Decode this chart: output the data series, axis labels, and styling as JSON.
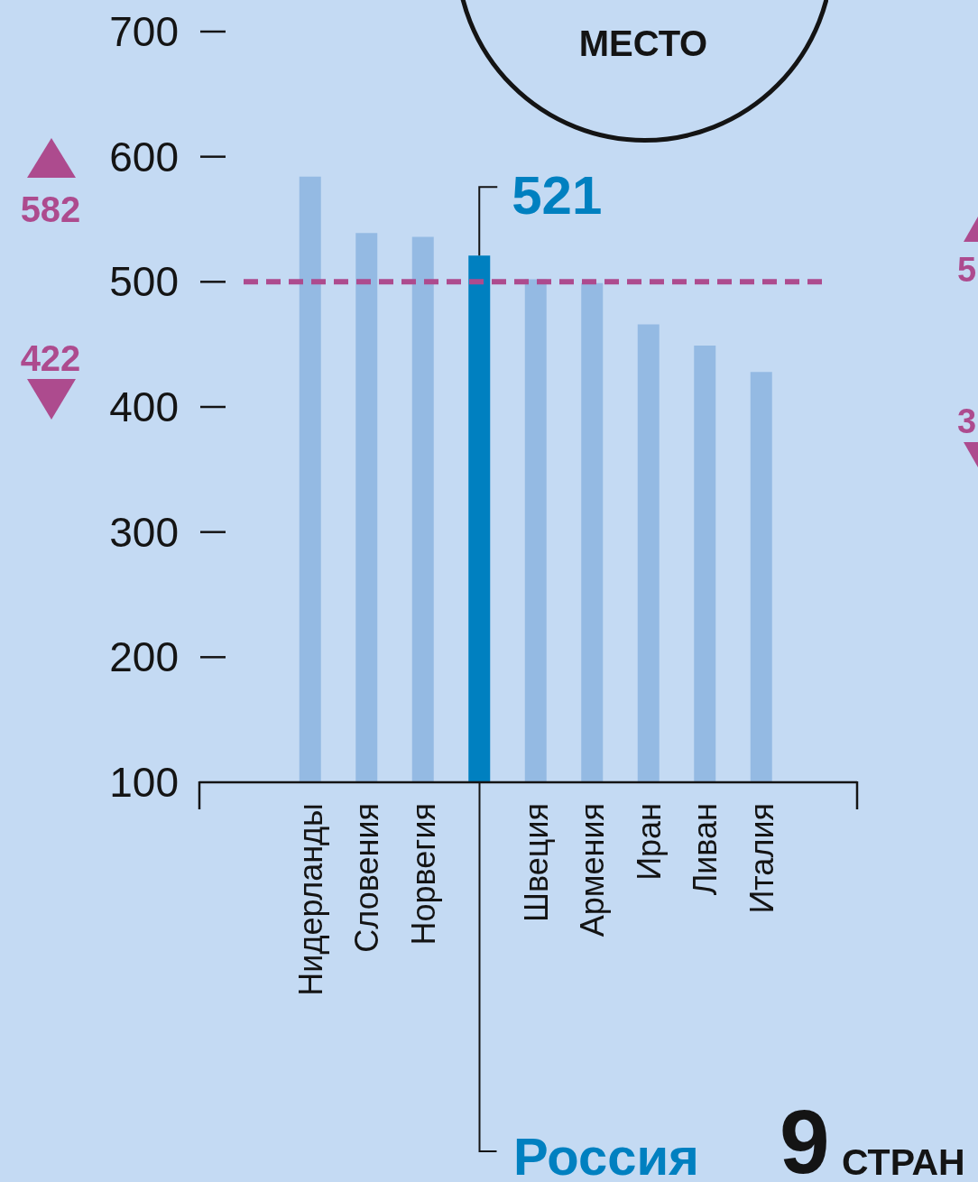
{
  "chart_data": {
    "type": "bar",
    "categories": [
      "Нидерланды",
      "Словения",
      "Норвегия",
      null,
      "Швеция",
      "Армения",
      "Иран",
      "Ливан",
      "Италия"
    ],
    "values": [
      584,
      539,
      536,
      521,
      502,
      499,
      466,
      449,
      428
    ],
    "colors": [
      "#94bae3",
      "#94bae3",
      "#94bae3",
      "#0080c0",
      "#94bae3",
      "#94bae3",
      "#94bae3",
      "#94bae3",
      "#94bae3"
    ],
    "value_labels": [
      null,
      null,
      null,
      "521",
      null,
      null,
      null,
      null,
      null
    ],
    "ylim": [
      100,
      700
    ],
    "yticks": [
      100,
      200,
      300,
      400,
      500,
      600,
      700
    ],
    "ref_lines": [
      {
        "axis": "y",
        "value": 500,
        "color": "#ad4b8e",
        "line_style": "dashed"
      }
    ],
    "annotations": [
      "582",
      "422",
      "МЕСТО",
      "Россия",
      "9",
      "СТРАН",
      "5",
      "3"
    ]
  }
}
